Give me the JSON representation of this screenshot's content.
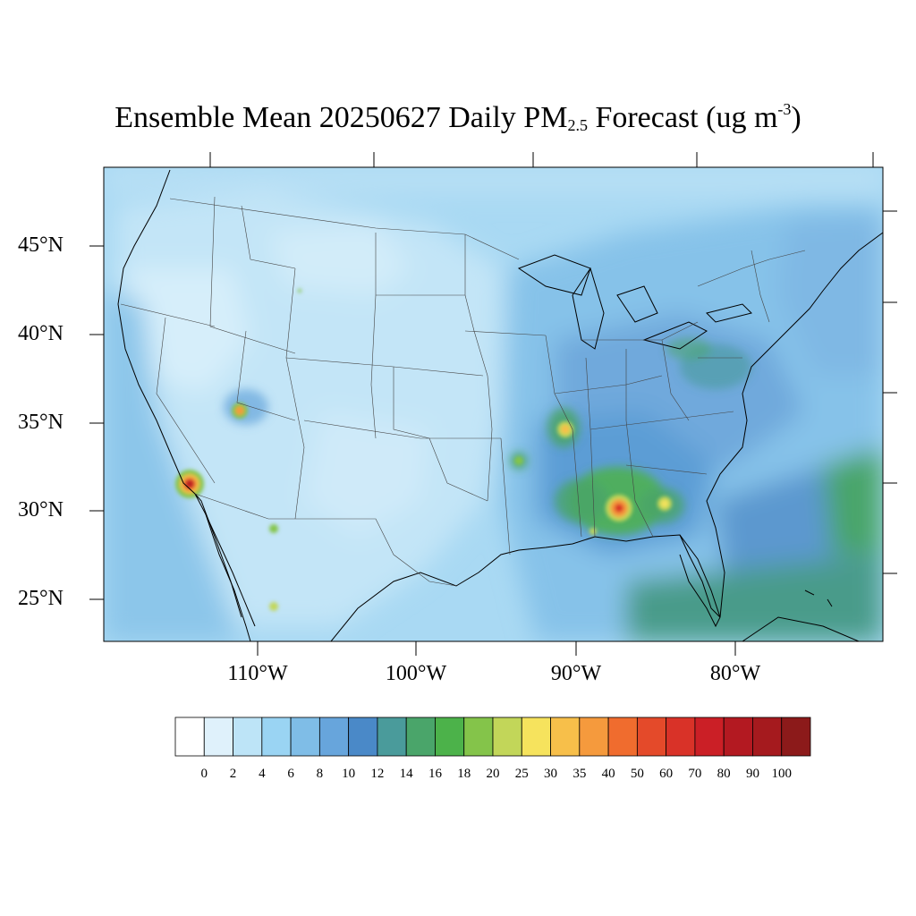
{
  "title": {
    "main": "Ensemble Mean 20250627 Daily PM",
    "sub": "2.5",
    "after": " Forecast (ug m",
    "sup": "-3",
    "close": ")"
  },
  "lat_labels": [
    "45°N",
    "40°N",
    "35°N",
    "30°N",
    "25°N"
  ],
  "lon_labels": [
    "110°W",
    "100°W",
    "90°W",
    "80°W"
  ],
  "colorbar": {
    "labels": [
      "0",
      "2",
      "4",
      "6",
      "8",
      "10",
      "12",
      "14",
      "16",
      "18",
      "20",
      "25",
      "30",
      "35",
      "40",
      "50",
      "60",
      "70",
      "80",
      "90",
      "100"
    ],
    "colors": [
      "#ffffff",
      "#dff1fb",
      "#bde4f7",
      "#9ad4f3",
      "#7fbde7",
      "#67a5dc",
      "#4a89c8",
      "#4a9b9b",
      "#4aa56a",
      "#4cb24a",
      "#84c44a",
      "#c2d659",
      "#f6e35d",
      "#f7bf4a",
      "#f59a3d",
      "#f06c2e",
      "#e44a2a",
      "#d93228",
      "#cb1f26",
      "#b31921",
      "#a51a1e",
      "#8c1a1a"
    ]
  },
  "map_data": {
    "variable": "Daily PM2.5",
    "units": "ug m-3",
    "date": "20250627",
    "hotspots": [
      {
        "name": "southern-california",
        "level": 80
      },
      {
        "name": "central-alabama",
        "level": 70
      },
      {
        "name": "mid-mississippi-valley",
        "level": 35
      },
      {
        "name": "southern-georgia",
        "level": 30
      },
      {
        "name": "central-utah",
        "level": 35
      },
      {
        "name": "southern-arizona",
        "level": 20
      },
      {
        "name": "wyoming",
        "level": 18
      },
      {
        "name": "sonora-mexico",
        "level": 25
      }
    ]
  }
}
